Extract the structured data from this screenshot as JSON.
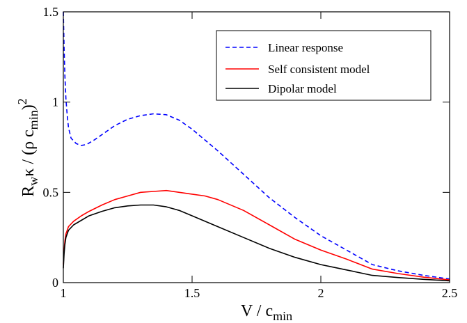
{
  "chart_data": {
    "type": "line",
    "xlim": [
      1,
      2.5
    ],
    "ylim": [
      0,
      1.5
    ],
    "x_ticks": [
      {
        "value": 1,
        "label": "1"
      },
      {
        "value": 1.5,
        "label": "1.5"
      },
      {
        "value": 2,
        "label": "2"
      },
      {
        "value": 2.5,
        "label": "2.5"
      }
    ],
    "y_ticks": [
      {
        "value": 0,
        "label": "0"
      },
      {
        "value": 0.5,
        "label": "0.5"
      },
      {
        "value": 1,
        "label": "1"
      },
      {
        "value": 1.5,
        "label": "1.5"
      }
    ],
    "xlabel": {
      "main": "V /  c",
      "sub": "min"
    },
    "ylabel": {
      "a": "R",
      "a_sub": "w",
      "b": "κ / (ρ c",
      "b_sub": "min",
      "c": ")",
      "c_sup": "2"
    },
    "legend_position": "top-right",
    "series": [
      {
        "name": "Linear response",
        "color": "#0000ff",
        "dash": "dashed",
        "x": [
          1.0,
          1.003,
          1.006,
          1.01,
          1.015,
          1.02,
          1.03,
          1.05,
          1.07,
          1.09,
          1.12,
          1.16,
          1.2,
          1.25,
          1.3,
          1.35,
          1.4,
          1.45,
          1.5,
          1.6,
          1.7,
          1.8,
          1.9,
          2.0,
          2.1,
          2.2,
          2.3,
          2.4,
          2.5
        ],
        "y": [
          1.5,
          1.3,
          1.15,
          1.02,
          0.93,
          0.86,
          0.8,
          0.77,
          0.76,
          0.765,
          0.79,
          0.83,
          0.87,
          0.905,
          0.925,
          0.935,
          0.93,
          0.9,
          0.85,
          0.73,
          0.6,
          0.47,
          0.36,
          0.26,
          0.18,
          0.1,
          0.065,
          0.04,
          0.02
        ]
      },
      {
        "name": "Self consistent model",
        "color": "#ff0000",
        "dash": "solid",
        "x": [
          1.0,
          1.003,
          1.006,
          1.01,
          1.02,
          1.04,
          1.07,
          1.1,
          1.15,
          1.2,
          1.25,
          1.3,
          1.35,
          1.4,
          1.45,
          1.5,
          1.55,
          1.6,
          1.7,
          1.8,
          1.9,
          2.0,
          2.1,
          2.2,
          2.3,
          2.4,
          2.5
        ],
        "y": [
          0.1,
          0.18,
          0.23,
          0.27,
          0.31,
          0.34,
          0.37,
          0.395,
          0.43,
          0.46,
          0.48,
          0.5,
          0.505,
          0.51,
          0.5,
          0.49,
          0.48,
          0.46,
          0.4,
          0.32,
          0.24,
          0.18,
          0.13,
          0.075,
          0.05,
          0.03,
          0.015
        ]
      },
      {
        "name": "Dipolar model",
        "color": "#000000",
        "dash": "solid",
        "x": [
          1.0,
          1.003,
          1.006,
          1.01,
          1.02,
          1.04,
          1.07,
          1.1,
          1.15,
          1.2,
          1.25,
          1.3,
          1.35,
          1.4,
          1.45,
          1.5,
          1.6,
          1.7,
          1.8,
          1.9,
          2.0,
          2.1,
          2.2,
          2.3,
          2.4,
          2.5
        ],
        "y": [
          0.08,
          0.16,
          0.21,
          0.25,
          0.29,
          0.32,
          0.345,
          0.37,
          0.395,
          0.415,
          0.425,
          0.43,
          0.43,
          0.42,
          0.4,
          0.37,
          0.31,
          0.25,
          0.19,
          0.14,
          0.1,
          0.07,
          0.04,
          0.028,
          0.018,
          0.01
        ]
      }
    ]
  }
}
